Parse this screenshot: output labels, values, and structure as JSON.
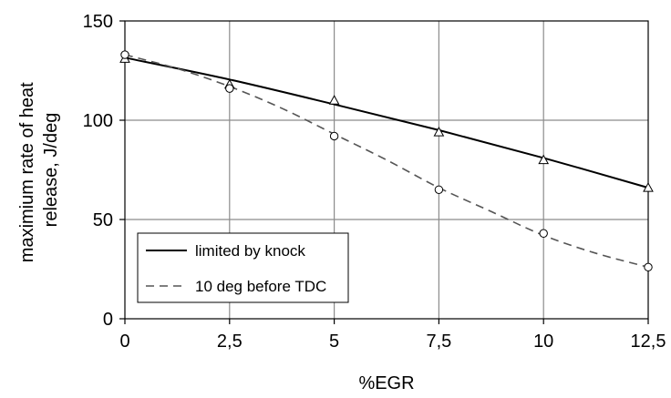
{
  "chart_data": {
    "type": "line",
    "title": "",
    "xlabel": "%EGR",
    "ylabel_lines": [
      "maximium rate of heat",
      "release, J/deg"
    ],
    "xlim": [
      0,
      12.5
    ],
    "ylim": [
      0,
      150
    ],
    "x_ticks": [
      0,
      2.5,
      5,
      7.5,
      10,
      12.5
    ],
    "x_tick_labels": [
      "0",
      "2,5",
      "5",
      "7,5",
      "10",
      "12,5"
    ],
    "y_ticks": [
      0,
      50,
      100,
      150
    ],
    "y_tick_labels": [
      "0",
      "50",
      "100",
      "150"
    ],
    "grid": true,
    "legend_position": "bottom-left",
    "series": [
      {
        "name": "limited by knock",
        "line_style": "solid",
        "marker": "triangle",
        "color": "#000000",
        "x": [
          0,
          2.5,
          5,
          7.5,
          10,
          12.5
        ],
        "y": [
          131,
          118,
          110,
          94,
          80,
          66
        ],
        "fit_x": [
          0,
          2.5,
          5,
          7.5,
          10,
          12.5
        ],
        "fit_y": [
          131.5,
          120.5,
          108,
          95,
          81,
          66
        ]
      },
      {
        "name": "10 deg before TDC",
        "line_style": "dashed",
        "marker": "circle",
        "color": "#555555",
        "x": [
          0,
          2.5,
          5,
          7.5,
          10,
          12.5
        ],
        "y": [
          133,
          116,
          92,
          65,
          43,
          26
        ],
        "fit_x": [
          0,
          1.25,
          2.5,
          3.75,
          5,
          6.25,
          7.5,
          8.75,
          10,
          11.25,
          12.5
        ],
        "fit_y": [
          133,
          126,
          117,
          106,
          93,
          80,
          66,
          54,
          42,
          33,
          26
        ]
      }
    ]
  }
}
